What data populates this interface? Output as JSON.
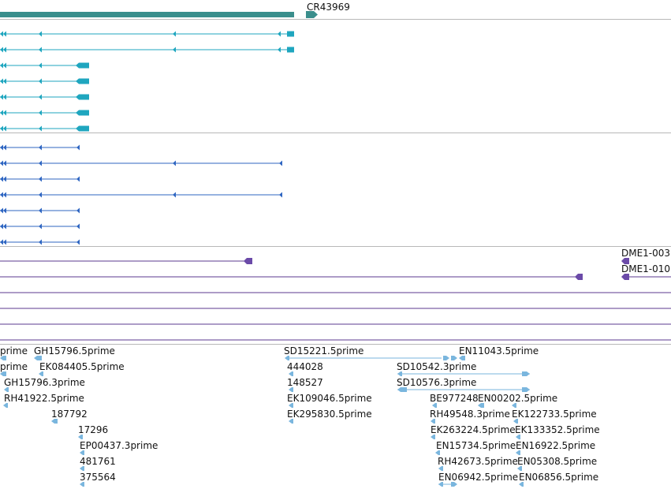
{
  "track_colors": {
    "gene": "#3a8e8c",
    "transcript": "#1fa6bf",
    "cds": "#2f66c2",
    "probe": "#6b4aa8",
    "probe_line": "#5b3a8f",
    "est": "#7ab6de",
    "divider": "#b8b8b8"
  },
  "gene_track": {
    "gene_label": "CR43969"
  },
  "probe_track": {
    "labels": [
      "DME1-003",
      "DME1-010"
    ]
  },
  "est_track": {
    "labels": [
      "prime",
      "GH15796.5prime",
      "SD15221.5prime",
      "EN11043.5prime",
      "prime",
      "EK084405.5prime",
      "444028",
      "SD10542.3prime",
      "GH15796.3prime",
      "148527",
      "SD10576.3prime",
      "RH41922.5prime",
      "EK109046.5prime",
      "BE977248",
      "EN00202.5prime",
      "187792",
      "EK295830.5prime",
      "RH49548.3prime",
      "EK122733.5prime",
      "17296",
      "EK263224.5prime",
      "EK133352.5prime",
      "EP00437.3prime",
      "EN15734.5prime",
      "EN16922.5prime",
      "481761",
      "RH42673.5prime",
      "EN05308.5prime",
      "375564",
      "EN06942.5prime",
      "EN06856.5prime"
    ]
  }
}
